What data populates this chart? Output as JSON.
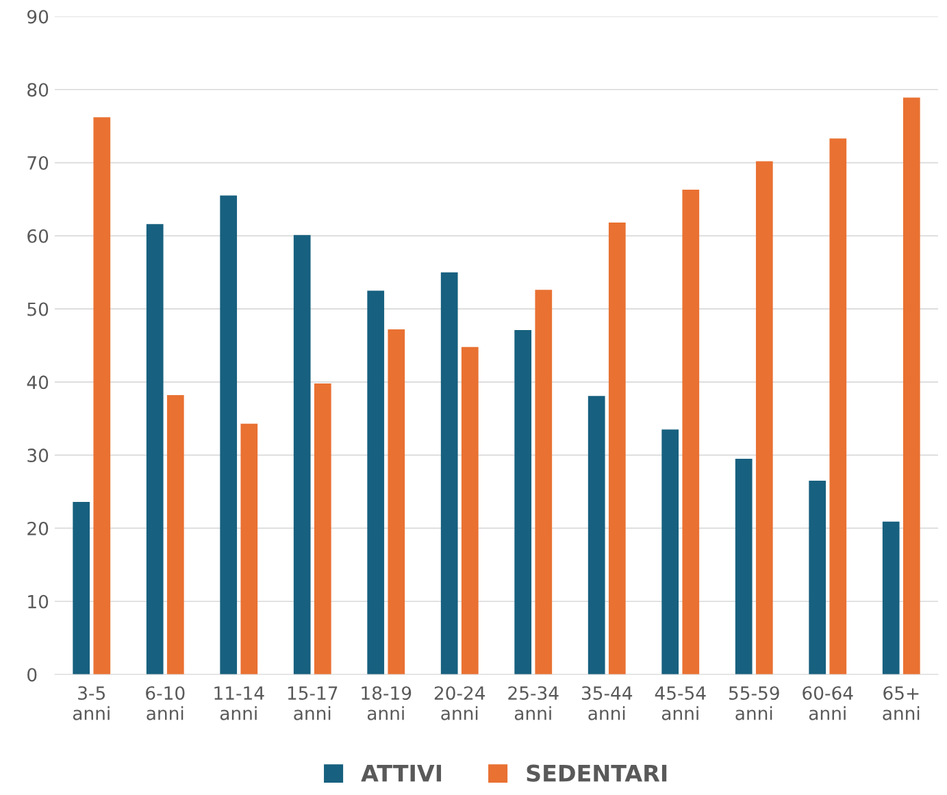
{
  "chart_data": {
    "type": "bar",
    "categories": [
      "3-5\nanni",
      "6-10\nanni",
      "11-14\nanni",
      "15-17\nanni",
      "18-19\nanni",
      "20-24\nanni",
      "25-34\nanni",
      "35-44\nanni",
      "45-54\nanni",
      "55-59\nanni",
      "60-64\nanni",
      "65+\nanni"
    ],
    "series": [
      {
        "name": "ATTIVI",
        "color": "#17607f",
        "values": [
          23.6,
          61.6,
          65.5,
          60.1,
          52.5,
          55.0,
          47.1,
          38.1,
          33.5,
          29.5,
          26.5,
          20.9
        ]
      },
      {
        "name": "SEDENTARI",
        "color": "#e97132",
        "values": [
          76.2,
          38.2,
          34.3,
          39.8,
          47.2,
          44.8,
          52.6,
          61.8,
          66.3,
          70.2,
          73.3,
          78.9
        ]
      }
    ],
    "ylim": [
      0,
      90
    ],
    "yticks": [
      0,
      10,
      20,
      30,
      40,
      50,
      60,
      70,
      80,
      90
    ],
    "grid": "y",
    "legend": "bottom"
  }
}
